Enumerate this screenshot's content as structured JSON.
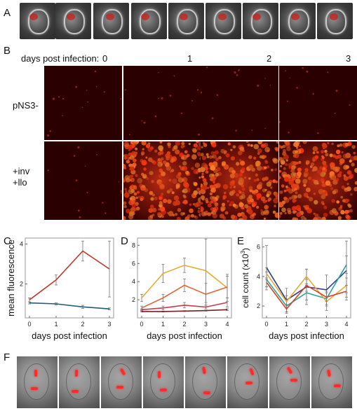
{
  "panel_labels": {
    "a": "A",
    "b": "B",
    "c": "C",
    "d": "D",
    "e": "E",
    "f": "F"
  },
  "panel_b": {
    "header": "days post infection:",
    "days": [
      "0",
      "1",
      "2",
      "3"
    ],
    "rows": [
      "pNS3-",
      "+inv",
      "+llo"
    ]
  },
  "chart_data": [
    {
      "panel": "C",
      "type": "line",
      "xlabel": "days post infection",
      "ylabel": "mean fluorescence",
      "x": [
        0,
        1,
        2,
        3
      ],
      "x_ticks": [
        "0",
        "1",
        "2",
        "3"
      ],
      "y_ticks": [
        "2",
        "4"
      ],
      "ylim": [
        0.3,
        4.3
      ],
      "series": [
        {
          "color": "#c0392b",
          "values": [
            1.2,
            2.2,
            3.65,
            2.75
          ],
          "err": [
            0.1,
            0.25,
            0.5,
            1.4
          ]
        },
        {
          "color": "#1f5c7a",
          "values": [
            1.05,
            1.0,
            0.85,
            0.75
          ],
          "err": [
            0.05,
            0.05,
            0.08,
            0.05
          ]
        }
      ]
    },
    {
      "panel": "D",
      "type": "line",
      "xlabel": "days post infection",
      "ylabel": "",
      "x": [
        0,
        1,
        2,
        3,
        4
      ],
      "x_ticks": [
        "0",
        "1",
        "2",
        "3",
        "4"
      ],
      "y_ticks": [
        "2",
        "4",
        "6",
        "8"
      ],
      "ylim": [
        0,
        8.8
      ],
      "series": [
        {
          "color": "#e8a935",
          "values": [
            2.2,
            4.9,
            5.8,
            5.2,
            3.3
          ],
          "err": [
            0.4,
            1.0,
            0.8,
            3.5,
            1.5
          ]
        },
        {
          "color": "#e0673a",
          "values": [
            1.1,
            2.2,
            3.6,
            2.6,
            3.4
          ],
          "err": [
            0.2,
            0.4,
            0.7,
            1.2,
            1.2
          ]
        },
        {
          "color": "#c23a4a",
          "values": [
            0.9,
            1.1,
            1.4,
            1.2,
            1.7
          ],
          "err": [
            0.1,
            0.2,
            0.3,
            0.2,
            0.5
          ]
        },
        {
          "color": "#7a1f1f",
          "values": [
            0.7,
            0.7,
            0.75,
            0.8,
            0.9
          ],
          "err": [
            0.05,
            0.05,
            0.05,
            0.05,
            0.1
          ]
        }
      ]
    },
    {
      "panel": "E",
      "type": "line",
      "xlabel": "days post infection",
      "ylabel_main": "cell count (x10",
      "ylabel_sup": "3",
      "ylabel_end": ")",
      "x": [
        0,
        1,
        2,
        3,
        4
      ],
      "x_ticks": [
        "0",
        "1",
        "2",
        "3",
        "4"
      ],
      "y_ticks": [
        "2",
        "4",
        "6"
      ],
      "ylim": [
        1.2,
        6.6
      ],
      "series": [
        {
          "color": "#2c3e8c",
          "values": [
            4.6,
            2.4,
            3.3,
            3.1,
            4.4
          ],
          "err": [
            1.5,
            0.8,
            1.2,
            1.0,
            2.0
          ]
        },
        {
          "color": "#2aa39a",
          "values": [
            3.8,
            2.0,
            2.9,
            2.5,
            4.8
          ],
          "err": [
            0.5,
            0.4,
            0.5,
            0.5,
            0.6
          ]
        },
        {
          "color": "#e8a935",
          "values": [
            4.2,
            2.3,
            4.0,
            2.3,
            3.4
          ],
          "err": [
            0.4,
            0.4,
            0.5,
            0.6,
            0.5
          ]
        },
        {
          "color": "#d0432b",
          "values": [
            3.6,
            1.8,
            3.4,
            2.6,
            3.0
          ],
          "err": [
            0.3,
            0.3,
            0.4,
            0.3,
            0.4
          ]
        }
      ]
    }
  ]
}
